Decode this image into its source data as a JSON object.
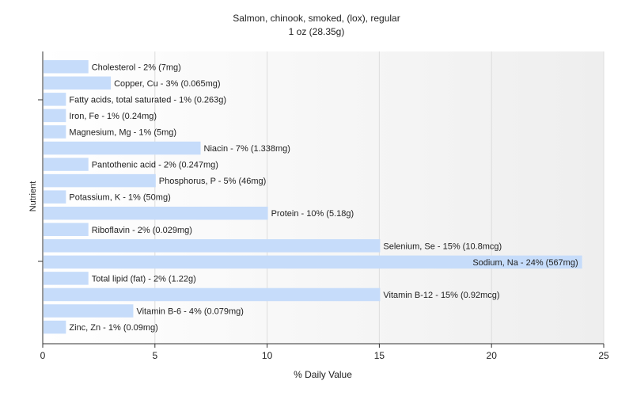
{
  "chart_data": {
    "type": "bar",
    "orientation": "horizontal",
    "title": "Salmon, chinook, smoked, (lox), regular",
    "subtitle": "1 oz (28.35g)",
    "xlabel": "% Daily Value",
    "ylabel": "Nutrient",
    "xlim": [
      0,
      25
    ],
    "xticks": [
      0,
      5,
      10,
      15,
      20,
      25
    ],
    "grid": true,
    "bar_color": "#c6dcfa",
    "categories": [
      "Cholesterol - 2% (7mg)",
      "Copper, Cu - 3% (0.065mg)",
      "Fatty acids, total saturated - 1% (0.263g)",
      "Iron, Fe - 1% (0.24mg)",
      "Magnesium, Mg - 1% (5mg)",
      "Niacin - 7% (1.338mg)",
      "Pantothenic acid - 2% (0.247mg)",
      "Phosphorus, P - 5% (46mg)",
      "Potassium, K - 1% (50mg)",
      "Protein - 10% (5.18g)",
      "Riboflavin - 2% (0.029mg)",
      "Selenium, Se - 15% (10.8mcg)",
      "Sodium, Na - 24% (567mg)",
      "Total lipid (fat) - 2% (1.22g)",
      "Vitamin B-12 - 15% (0.92mcg)",
      "Vitamin B-6 - 4% (0.079mg)",
      "Zinc, Zn - 1% (0.09mg)"
    ],
    "values": [
      2,
      3,
      1,
      1,
      1,
      7,
      2,
      5,
      1,
      10,
      2,
      15,
      24,
      2,
      15,
      4,
      1
    ]
  }
}
